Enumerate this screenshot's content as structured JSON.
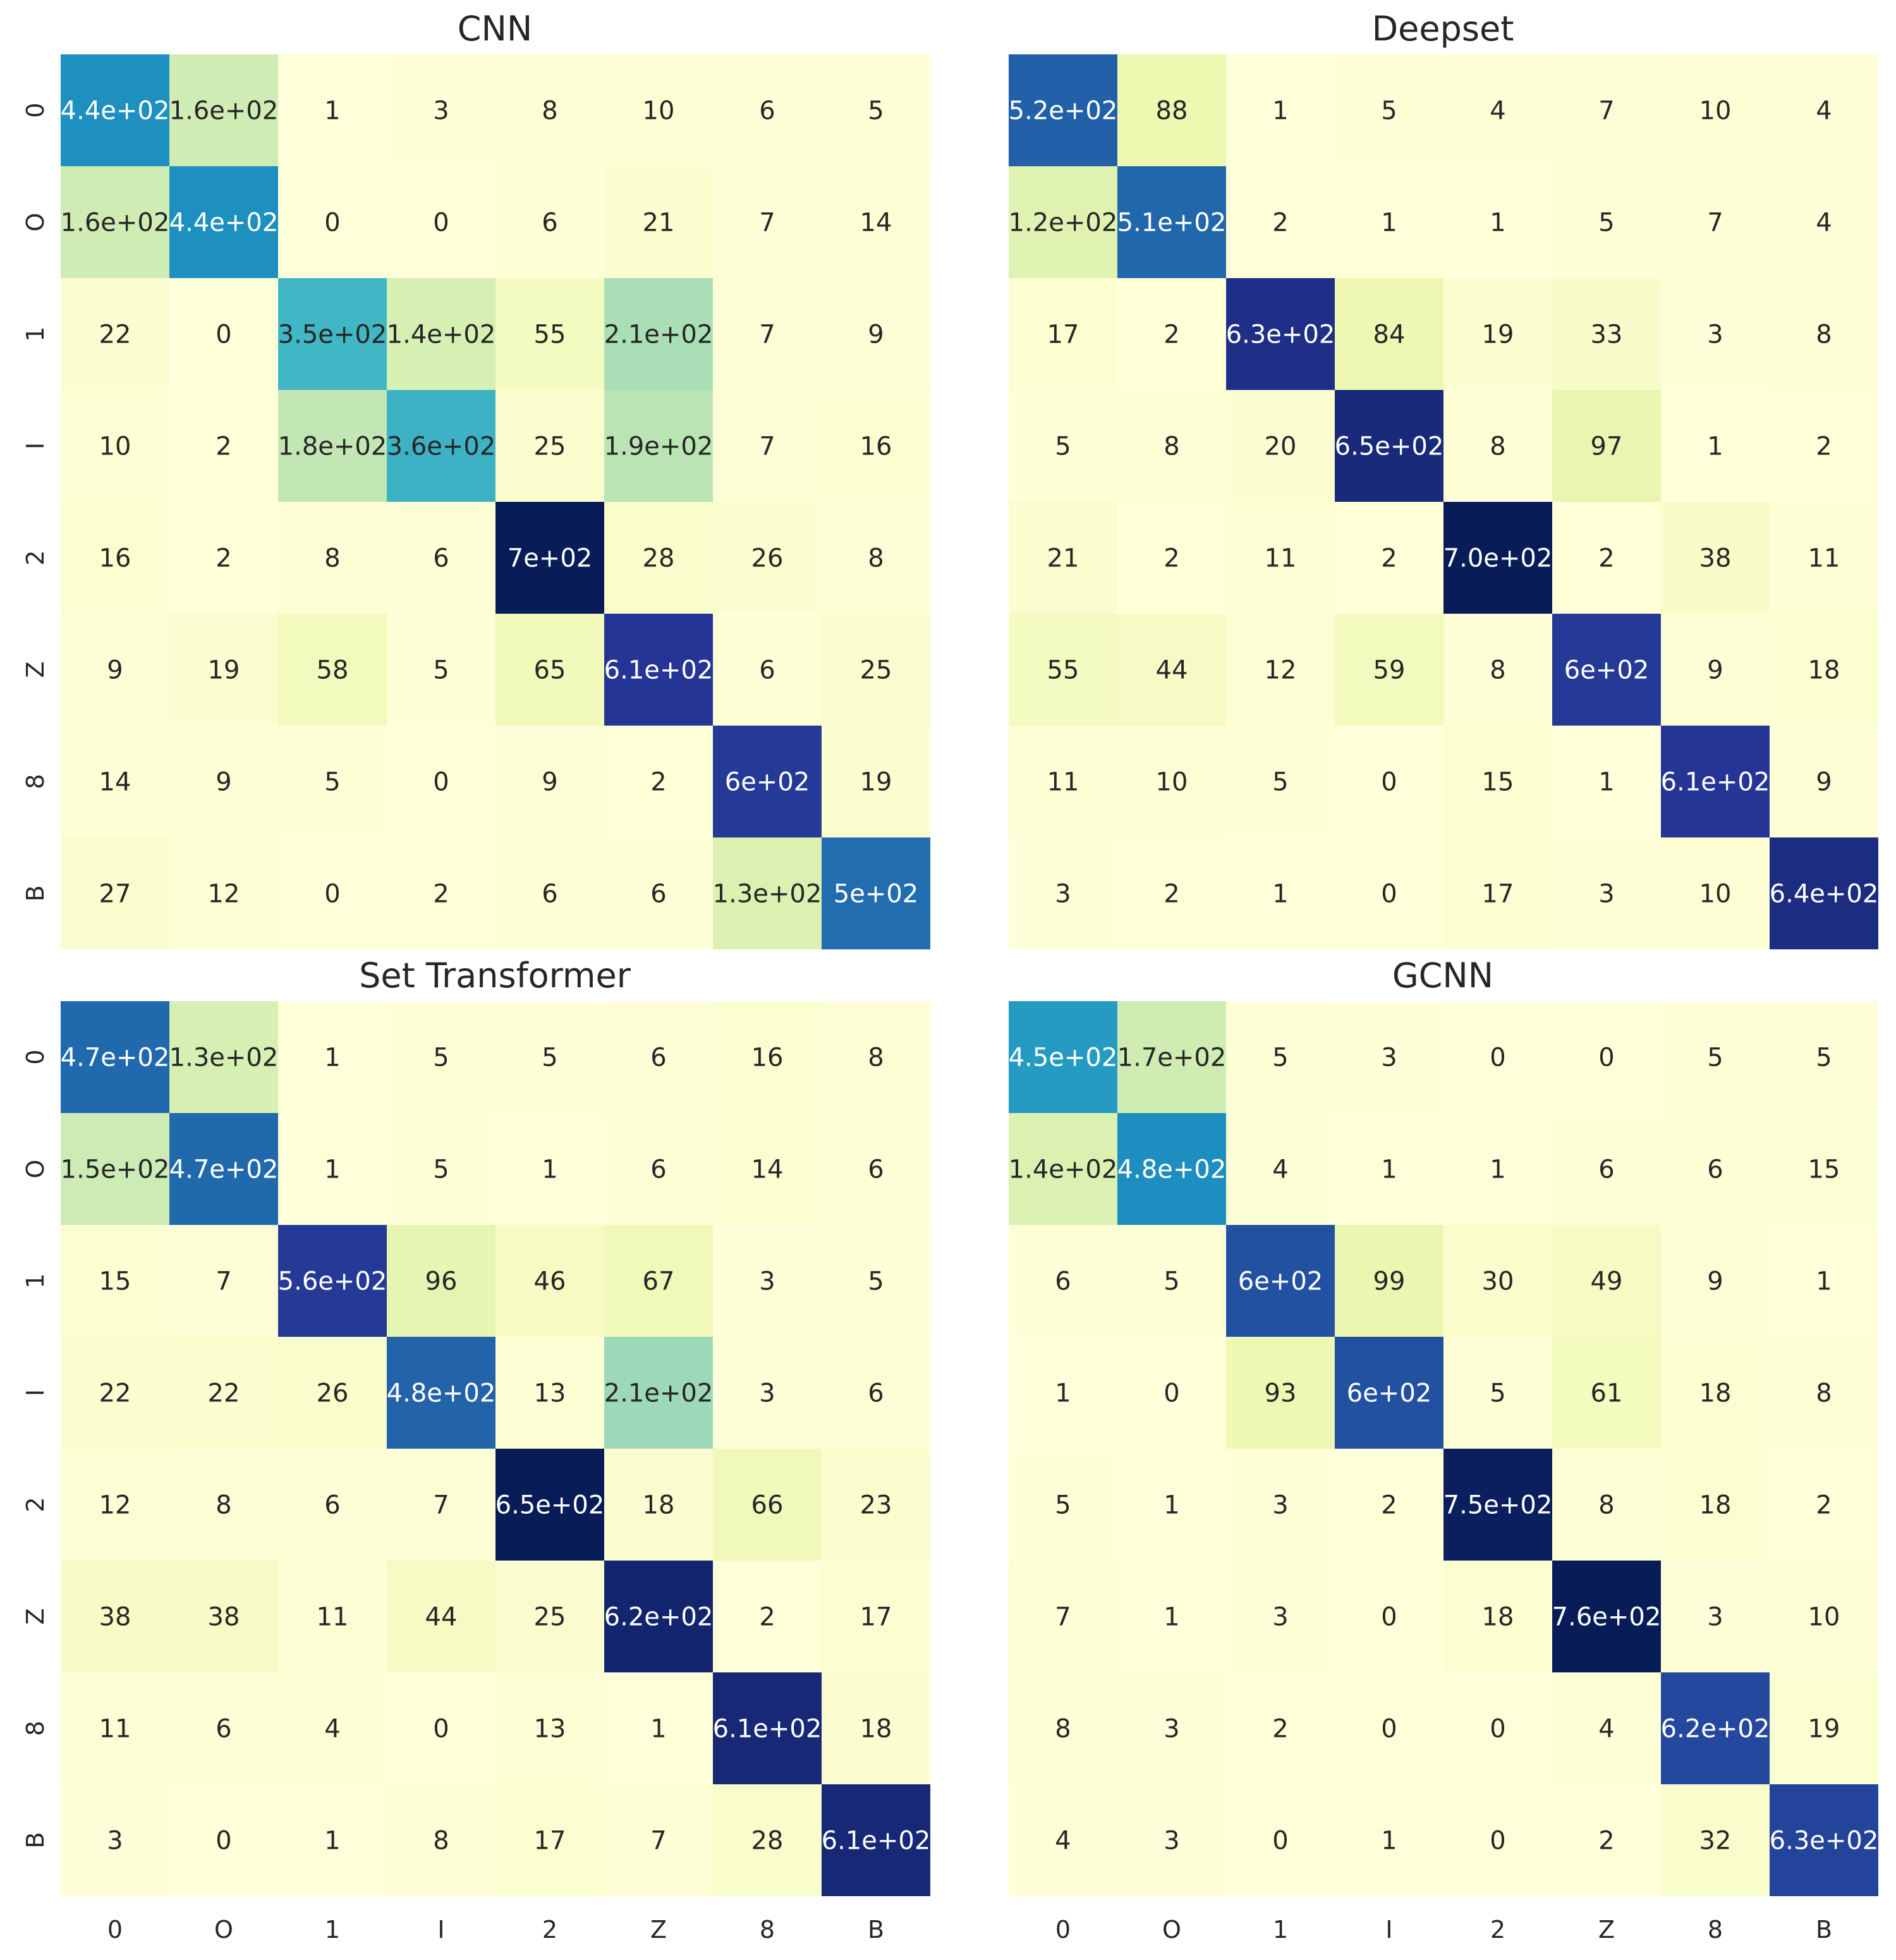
{
  "chart_data": [
    {
      "type": "heatmap",
      "title": "CNN",
      "categories": [
        "0",
        "O",
        "1",
        "I",
        "2",
        "Z",
        "8",
        "B"
      ],
      "values": [
        [
          440,
          160,
          1,
          3,
          8,
          10,
          6,
          5
        ],
        [
          160,
          440,
          0,
          0,
          6,
          21,
          7,
          14
        ],
        [
          22,
          0,
          350,
          140,
          55,
          210,
          7,
          9
        ],
        [
          10,
          2,
          180,
          360,
          25,
          190,
          7,
          16
        ],
        [
          16,
          2,
          8,
          6,
          700,
          28,
          26,
          8
        ],
        [
          9,
          19,
          58,
          5,
          65,
          610,
          6,
          25
        ],
        [
          14,
          9,
          5,
          0,
          9,
          2,
          600,
          19
        ],
        [
          27,
          12,
          0,
          2,
          6,
          6,
          130,
          500
        ]
      ],
      "labels": [
        [
          "4.4e+02",
          "1.6e+02",
          "1",
          "3",
          "8",
          "10",
          "6",
          "5"
        ],
        [
          "1.6e+02",
          "4.4e+02",
          "0",
          "0",
          "6",
          "21",
          "7",
          "14"
        ],
        [
          "22",
          "0",
          "3.5e+02",
          "1.4e+02",
          "55",
          "2.1e+02",
          "7",
          "9"
        ],
        [
          "10",
          "2",
          "1.8e+02",
          "3.6e+02",
          "25",
          "1.9e+02",
          "7",
          "16"
        ],
        [
          "16",
          "2",
          "8",
          "6",
          "7e+02",
          "28",
          "26",
          "8"
        ],
        [
          "9",
          "19",
          "58",
          "5",
          "65",
          "6.1e+02",
          "6",
          "25"
        ],
        [
          "14",
          "9",
          "5",
          "0",
          "9",
          "2",
          "6e+02",
          "19"
        ],
        [
          "27",
          "12",
          "0",
          "2",
          "6",
          "6",
          "1.3e+02",
          "5e+02"
        ]
      ],
      "show_y_ticks": true,
      "show_x_ticks": false
    },
    {
      "type": "heatmap",
      "title": "Deepset",
      "categories": [
        "0",
        "O",
        "1",
        "I",
        "2",
        "Z",
        "8",
        "B"
      ],
      "values": [
        [
          520,
          88,
          1,
          5,
          4,
          7,
          10,
          4
        ],
        [
          120,
          510,
          2,
          1,
          1,
          5,
          7,
          4
        ],
        [
          17,
          2,
          630,
          84,
          19,
          33,
          3,
          8
        ],
        [
          5,
          8,
          20,
          650,
          8,
          97,
          1,
          2
        ],
        [
          21,
          2,
          11,
          2,
          700,
          2,
          38,
          11
        ],
        [
          55,
          44,
          12,
          59,
          8,
          600,
          9,
          18
        ],
        [
          11,
          10,
          5,
          0,
          15,
          1,
          610,
          9
        ],
        [
          3,
          2,
          1,
          0,
          17,
          3,
          10,
          640
        ]
      ],
      "labels": [
        [
          "5.2e+02",
          "88",
          "1",
          "5",
          "4",
          "7",
          "10",
          "4"
        ],
        [
          "1.2e+02",
          "5.1e+02",
          "2",
          "1",
          "1",
          "5",
          "7",
          "4"
        ],
        [
          "17",
          "2",
          "6.3e+02",
          "84",
          "19",
          "33",
          "3",
          "8"
        ],
        [
          "5",
          "8",
          "20",
          "6.5e+02",
          "8",
          "97",
          "1",
          "2"
        ],
        [
          "21",
          "2",
          "11",
          "2",
          "7.0e+02",
          "2",
          "38",
          "11"
        ],
        [
          "55",
          "44",
          "12",
          "59",
          "8",
          "6e+02",
          "9",
          "18"
        ],
        [
          "11",
          "10",
          "5",
          "0",
          "15",
          "1",
          "6.1e+02",
          "9"
        ],
        [
          "3",
          "2",
          "1",
          "0",
          "17",
          "3",
          "10",
          "6.4e+02"
        ]
      ],
      "show_y_ticks": false,
      "show_x_ticks": false
    },
    {
      "type": "heatmap",
      "title": "Set Transformer",
      "categories": [
        "0",
        "O",
        "1",
        "I",
        "2",
        "Z",
        "8",
        "B"
      ],
      "values": [
        [
          470,
          130,
          1,
          5,
          5,
          6,
          16,
          8
        ],
        [
          150,
          470,
          1,
          5,
          1,
          6,
          14,
          6
        ],
        [
          15,
          7,
          560,
          96,
          46,
          67,
          3,
          5
        ],
        [
          22,
          22,
          26,
          480,
          13,
          210,
          3,
          6
        ],
        [
          12,
          8,
          6,
          7,
          650,
          18,
          66,
          23
        ],
        [
          38,
          38,
          11,
          44,
          25,
          620,
          2,
          17
        ],
        [
          11,
          6,
          4,
          0,
          13,
          1,
          610,
          18
        ],
        [
          3,
          0,
          1,
          8,
          17,
          7,
          28,
          610
        ]
      ],
      "labels": [
        [
          "4.7e+02",
          "1.3e+02",
          "1",
          "5",
          "5",
          "6",
          "16",
          "8"
        ],
        [
          "1.5e+02",
          "4.7e+02",
          "1",
          "5",
          "1",
          "6",
          "14",
          "6"
        ],
        [
          "15",
          "7",
          "5.6e+02",
          "96",
          "46",
          "67",
          "3",
          "5"
        ],
        [
          "22",
          "22",
          "26",
          "4.8e+02",
          "13",
          "2.1e+02",
          "3",
          "6"
        ],
        [
          "12",
          "8",
          "6",
          "7",
          "6.5e+02",
          "18",
          "66",
          "23"
        ],
        [
          "38",
          "38",
          "11",
          "44",
          "25",
          "6.2e+02",
          "2",
          "17"
        ],
        [
          "11",
          "6",
          "4",
          "0",
          "13",
          "1",
          "6.1e+02",
          "18"
        ],
        [
          "3",
          "0",
          "1",
          "8",
          "17",
          "7",
          "28",
          "6.1e+02"
        ]
      ],
      "show_y_ticks": true,
      "show_x_ticks": true
    },
    {
      "type": "heatmap",
      "title": "GCNN",
      "categories": [
        "0",
        "O",
        "1",
        "I",
        "2",
        "Z",
        "8",
        "B"
      ],
      "values": [
        [
          450,
          170,
          5,
          3,
          0,
          0,
          5,
          5
        ],
        [
          140,
          480,
          4,
          1,
          1,
          6,
          6,
          15
        ],
        [
          6,
          5,
          600,
          99,
          30,
          49,
          9,
          1
        ],
        [
          1,
          0,
          93,
          600,
          5,
          61,
          18,
          8
        ],
        [
          5,
          1,
          3,
          2,
          750,
          8,
          18,
          2
        ],
        [
          7,
          1,
          3,
          0,
          18,
          760,
          3,
          10
        ],
        [
          8,
          3,
          2,
          0,
          0,
          4,
          620,
          19
        ],
        [
          4,
          3,
          0,
          1,
          0,
          2,
          32,
          630
        ]
      ],
      "labels": [
        [
          "4.5e+02",
          "1.7e+02",
          "5",
          "3",
          "0",
          "0",
          "5",
          "5"
        ],
        [
          "1.4e+02",
          "4.8e+02",
          "4",
          "1",
          "1",
          "6",
          "6",
          "15"
        ],
        [
          "6",
          "5",
          "6e+02",
          "99",
          "30",
          "49",
          "9",
          "1"
        ],
        [
          "1",
          "0",
          "93",
          "6e+02",
          "5",
          "61",
          "18",
          "8"
        ],
        [
          "5",
          "1",
          "3",
          "2",
          "7.5e+02",
          "8",
          "18",
          "2"
        ],
        [
          "7",
          "1",
          "3",
          "0",
          "18",
          "7.6e+02",
          "3",
          "10"
        ],
        [
          "8",
          "3",
          "2",
          "0",
          "0",
          "4",
          "6.2e+02",
          "19"
        ],
        [
          "4",
          "3",
          "0",
          "1",
          "0",
          "2",
          "32",
          "6.3e+02"
        ]
      ],
      "show_y_ticks": false,
      "show_x_ticks": true
    }
  ],
  "colormap": "YlGnBu",
  "colorbar": false
}
